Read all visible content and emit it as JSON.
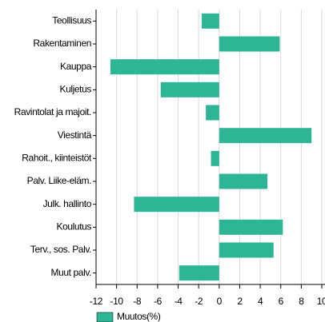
{
  "chart_data": {
    "type": "barh",
    "categories": [
      "Teollisuus",
      "Rakentaminen",
      "Kauppa",
      "Kuljetus",
      "Ravintolat ja majoit.",
      "Viestintä",
      "Rahoit., kiinteistöt",
      "Palv. Liike-eläm.",
      "Julk. hallinto",
      "Koulutus",
      "Terv., sos. Palv.",
      "Muut palv."
    ],
    "series": [
      {
        "name": "Muutos(%)",
        "color": "#2db596",
        "values": [
          -1.7,
          5.9,
          -10.6,
          -5.7,
          -1.3,
          9.0,
          -0.8,
          4.7,
          -8.3,
          6.2,
          5.3,
          -3.9
        ]
      }
    ],
    "xlim": [
      -12,
      10
    ],
    "xticks": [
      -12,
      -10,
      -8,
      -6,
      -4,
      -2,
      0,
      2,
      4,
      6,
      8,
      10
    ],
    "grid": true,
    "legend": "bottom"
  }
}
